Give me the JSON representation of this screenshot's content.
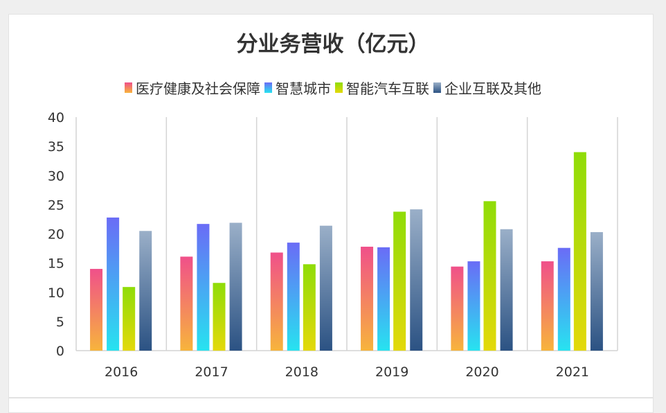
{
  "chart_data": {
    "type": "bar",
    "title": "分业务营收（亿元）",
    "categories": [
      "2016",
      "2017",
      "2018",
      "2019",
      "2020",
      "2021"
    ],
    "series": [
      {
        "name": "医疗健康及社会保障",
        "values": [
          14.0,
          16.1,
          16.8,
          17.8,
          14.4,
          15.3
        ],
        "colors": [
          "#f0508a",
          "#f7b43c"
        ]
      },
      {
        "name": "智慧城市",
        "values": [
          22.8,
          21.7,
          18.5,
          17.7,
          15.3,
          17.6
        ],
        "colors": [
          "#6a6cf6",
          "#27e3f0"
        ]
      },
      {
        "name": "智能汽车互联",
        "values": [
          10.9,
          11.6,
          14.8,
          23.8,
          25.6,
          34.0
        ],
        "colors": [
          "#8fdc08",
          "#e4d90a"
        ]
      },
      {
        "name": "企业互联及其他",
        "values": [
          20.5,
          21.9,
          21.4,
          24.2,
          20.8,
          20.3
        ],
        "colors": [
          "#9aafc8",
          "#2b5283"
        ]
      }
    ],
    "ylim": [
      0,
      40
    ],
    "yticks": [
      "0",
      "5",
      "10",
      "15",
      "20",
      "25",
      "30",
      "35",
      "40"
    ],
    "grid": "vertical category separators",
    "legend": "top"
  }
}
